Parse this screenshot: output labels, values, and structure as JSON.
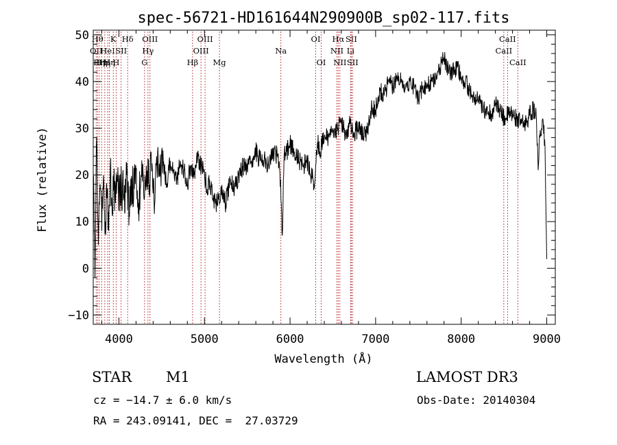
{
  "chart_data": {
    "type": "line",
    "title": "spec-56721-HD161644N290900B_sp02-117.fits",
    "xlabel": "Wavelength (Å)",
    "ylabel": "Flux (relative)",
    "xlim": [
      3700,
      9100
    ],
    "ylim": [
      -12,
      51
    ],
    "xticks": [
      4000,
      5000,
      6000,
      7000,
      8000,
      9000
    ],
    "yticks": [
      -10,
      0,
      10,
      20,
      30,
      40,
      50
    ],
    "series": [
      {
        "name": "flux",
        "x": [
          3700,
          3720,
          3740,
          3760,
          3780,
          3800,
          3820,
          3840,
          3860,
          3880,
          3900,
          3920,
          3940,
          3960,
          3980,
          4000,
          4030,
          4060,
          4090,
          4120,
          4150,
          4180,
          4200,
          4230,
          4260,
          4290,
          4320,
          4350,
          4380,
          4410,
          4440,
          4480,
          4520,
          4560,
          4600,
          4640,
          4680,
          4720,
          4760,
          4800,
          4840,
          4880,
          4920,
          4960,
          5000,
          5030,
          5060,
          5100,
          5150,
          5200,
          5250,
          5300,
          5350,
          5400,
          5450,
          5500,
          5550,
          5600,
          5650,
          5700,
          5750,
          5800,
          5850,
          5890,
          5910,
          5930,
          5960,
          6000,
          6050,
          6100,
          6150,
          6200,
          6250,
          6280,
          6300,
          6320,
          6350,
          6400,
          6450,
          6500,
          6560,
          6600,
          6650,
          6700,
          6750,
          6800,
          6850,
          6900,
          6950,
          7000,
          7050,
          7100,
          7150,
          7200,
          7250,
          7300,
          7350,
          7400,
          7450,
          7500,
          7550,
          7600,
          7650,
          7700,
          7750,
          7800,
          7850,
          7900,
          7950,
          8000,
          8050,
          8100,
          8150,
          8200,
          8250,
          8300,
          8350,
          8400,
          8450,
          8500,
          8550,
          8600,
          8650,
          8700,
          8750,
          8800,
          8850,
          8880,
          8900,
          8920,
          8940,
          8960,
          8980,
          9000
        ],
        "y": [
          20,
          -2,
          28,
          5,
          18,
          8,
          20,
          10,
          15,
          8,
          22,
          12,
          19,
          14,
          20,
          16,
          18,
          15,
          20,
          12,
          19,
          17,
          21,
          14,
          20,
          16,
          22,
          18,
          23,
          15,
          24,
          20,
          22,
          18,
          23,
          21,
          19,
          23,
          21,
          18,
          22,
          20,
          24,
          22,
          20,
          17,
          19,
          15,
          14,
          16,
          14,
          19,
          17,
          20,
          22,
          21,
          23,
          25,
          23,
          24,
          22,
          25,
          24,
          19,
          7,
          24,
          25,
          27,
          25,
          23,
          22,
          23,
          20,
          18,
          22,
          27,
          25,
          28,
          28,
          30,
          30,
          31,
          29,
          31,
          29,
          30,
          29,
          29,
          34,
          34,
          38,
          37,
          40,
          39,
          41,
          40,
          39,
          40,
          39,
          36,
          39,
          39,
          40,
          41,
          43,
          45,
          42,
          42,
          43,
          41,
          40,
          38,
          36,
          36,
          34,
          34,
          33,
          35,
          34,
          32,
          33,
          33,
          32,
          31,
          31,
          33,
          34,
          32,
          21,
          28,
          30,
          31,
          26,
          2
        ]
      }
    ],
    "line_markers": [
      {
        "wavelength": 3734,
        "label": "OII",
        "row": 2
      },
      {
        "wavelength": 3750,
        "label": "Hθ",
        "row": 1
      },
      {
        "wavelength": 3770,
        "label": "Hη",
        "row": 3
      },
      {
        "wavelength": 3798,
        "label": "Hη",
        "row": 3
      },
      {
        "wavelength": 3835,
        "label": "Hη",
        "row": 3
      },
      {
        "wavelength": 3869,
        "label": "HeI",
        "row": 2
      },
      {
        "wavelength": 3889,
        "label": "Hη",
        "row": 3
      },
      {
        "wavelength": 3934,
        "label": "K",
        "row": 1
      },
      {
        "wavelength": 3968,
        "label": "H",
        "row": 3
      },
      {
        "wavelength": 4026,
        "label": "SII",
        "row": 2
      },
      {
        "wavelength": 4102,
        "label": "Hδ",
        "row": 1
      },
      {
        "wavelength": 4300,
        "label": "G",
        "row": 3
      },
      {
        "wavelength": 4340,
        "label": "Hγ",
        "row": 2
      },
      {
        "wavelength": 4363,
        "label": "OIII",
        "row": 1
      },
      {
        "wavelength": 4861,
        "label": "Hβ",
        "row": 3
      },
      {
        "wavelength": 4959,
        "label": "OIII",
        "row": 2
      },
      {
        "wavelength": 5007,
        "label": "OIII",
        "row": 1
      },
      {
        "wavelength": 5175,
        "label": "Mg",
        "row": 3
      },
      {
        "wavelength": 5893,
        "label": "Na",
        "row": 2
      },
      {
        "wavelength": 6300,
        "label": "OI",
        "row": 1
      },
      {
        "wavelength": 6364,
        "label": "OI",
        "row": 3
      },
      {
        "wavelength": 6548,
        "label": "NII",
        "row": 2
      },
      {
        "wavelength": 6563,
        "label": "Hα",
        "row": 1
      },
      {
        "wavelength": 6583,
        "label": "NII",
        "row": 3
      },
      {
        "wavelength": 6708,
        "label": "Li",
        "row": 2
      },
      {
        "wavelength": 6716,
        "label": "SII",
        "row": 1
      },
      {
        "wavelength": 6731,
        "label": "SII",
        "row": 3
      },
      {
        "wavelength": 8498,
        "label": "CaII",
        "row": 2
      },
      {
        "wavelength": 8542,
        "label": "CaII",
        "row": 1
      },
      {
        "wavelength": 8662,
        "label": "CaII",
        "row": 3
      }
    ]
  },
  "info": {
    "object_class": "STAR",
    "subclass": "M1",
    "survey": "LAMOST DR3",
    "redshift": "cz = −14.7 ± 6.0 km/s",
    "obs_date": "Obs-Date: 20140304",
    "coords": "RA = 243.09141, DEC =  27.03729"
  }
}
